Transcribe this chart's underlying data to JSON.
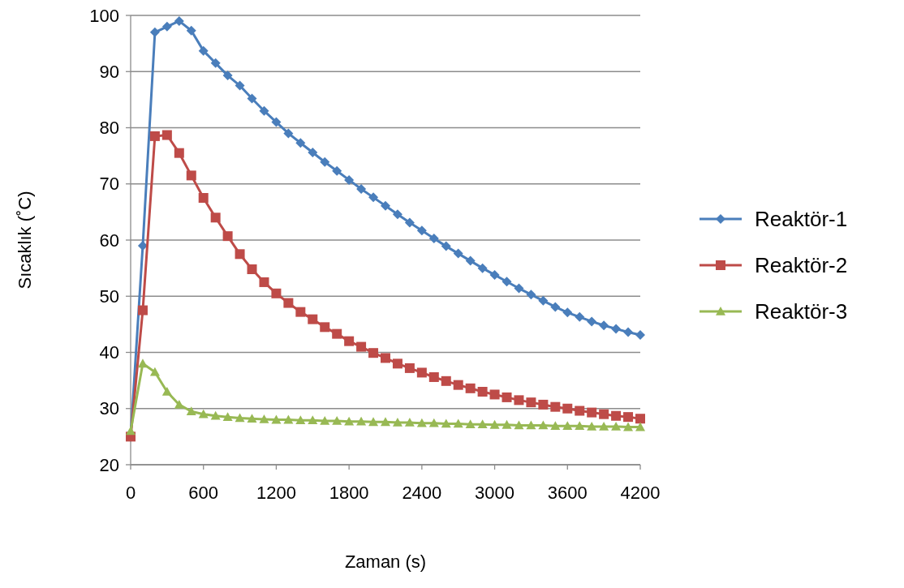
{
  "chart_data": {
    "type": "line",
    "xlabel": "Zaman (s)",
    "ylabel": "Sıcaklık (˚C)",
    "x": [
      0,
      100,
      200,
      300,
      400,
      500,
      600,
      700,
      800,
      900,
      1000,
      1100,
      1200,
      1300,
      1400,
      1500,
      1600,
      1700,
      1800,
      1900,
      2000,
      2100,
      2200,
      2300,
      2400,
      2500,
      2600,
      2700,
      2800,
      2900,
      3000,
      3100,
      3200,
      3300,
      3400,
      3500,
      3600,
      3700,
      3800,
      3900,
      4000,
      4100,
      4200
    ],
    "series": [
      {
        "name": "Reaktör-1",
        "color": "#4a7ebb",
        "marker": "diamond",
        "values": [
          25,
          59,
          97,
          98,
          99,
          97.3,
          93.7,
          91.5,
          89.3,
          87.5,
          85.2,
          83,
          81,
          79,
          77.3,
          75.6,
          73.9,
          72.3,
          70.7,
          69.1,
          67.6,
          66.1,
          64.6,
          63.1,
          61.7,
          60.3,
          58.9,
          57.6,
          56.3,
          55,
          53.8,
          52.6,
          51.4,
          50.3,
          49.2,
          48.1,
          47.1,
          46.3,
          45.5,
          44.8,
          44.2,
          43.6,
          43.1
        ]
      },
      {
        "name": "Reaktör-2",
        "color": "#be4b48",
        "marker": "square",
        "values": [
          25,
          47.5,
          78.5,
          78.7,
          75.5,
          71.5,
          67.5,
          64,
          60.7,
          57.5,
          54.8,
          52.5,
          50.5,
          48.8,
          47.2,
          45.9,
          44.5,
          43.3,
          42,
          41,
          39.9,
          39,
          38,
          37.2,
          36.4,
          35.6,
          34.9,
          34.2,
          33.6,
          33,
          32.5,
          32,
          31.5,
          31.1,
          30.7,
          30.3,
          30,
          29.6,
          29.3,
          29,
          28.7,
          28.5,
          28.2
        ]
      },
      {
        "name": "Reaktör-3",
        "color": "#98b954",
        "marker": "triangle",
        "values": [
          26,
          38,
          36.5,
          33,
          30.7,
          29.5,
          29,
          28.7,
          28.5,
          28.3,
          28.2,
          28.1,
          28,
          28,
          27.9,
          27.9,
          27.8,
          27.8,
          27.7,
          27.7,
          27.6,
          27.6,
          27.5,
          27.5,
          27.4,
          27.4,
          27.3,
          27.3,
          27.2,
          27.2,
          27.1,
          27.1,
          27,
          27,
          27,
          26.9,
          26.9,
          26.9,
          26.8,
          26.8,
          26.8,
          26.7,
          26.7
        ]
      }
    ],
    "xlim": [
      0,
      4200
    ],
    "xticks": [
      0,
      600,
      1200,
      1800,
      2400,
      3000,
      3600,
      4200
    ],
    "ylim": [
      20,
      100
    ],
    "yticks": [
      20,
      30,
      40,
      50,
      60,
      70,
      80,
      90,
      100
    ],
    "grid": "y",
    "legend": "right",
    "line_style": "solid"
  }
}
